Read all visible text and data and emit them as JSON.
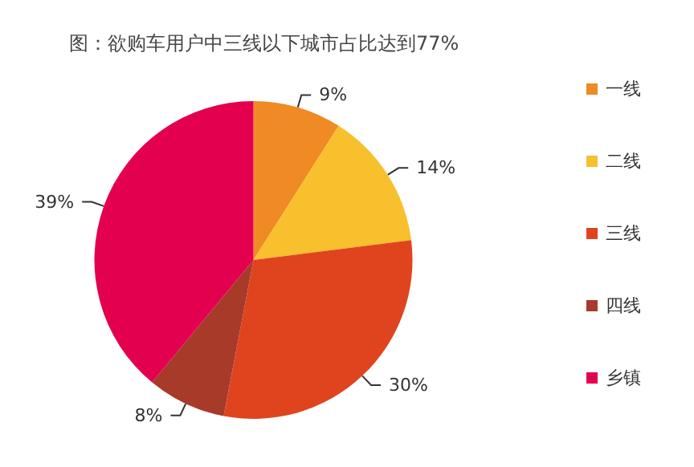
{
  "chart_data": {
    "type": "pie",
    "title": "图：欲购车用户中三线以下城市占比达到77%",
    "categories": [
      "一线",
      "二线",
      "三线",
      "四线",
      "乡镇"
    ],
    "values": [
      9,
      14,
      30,
      8,
      39
    ],
    "colors": [
      "#ef8a25",
      "#f8c02c",
      "#e0441f",
      "#a83a2a",
      "#e3004f"
    ],
    "value_labels": [
      "9%",
      "14%",
      "30%",
      "8%",
      "39%"
    ],
    "legend": "right"
  }
}
